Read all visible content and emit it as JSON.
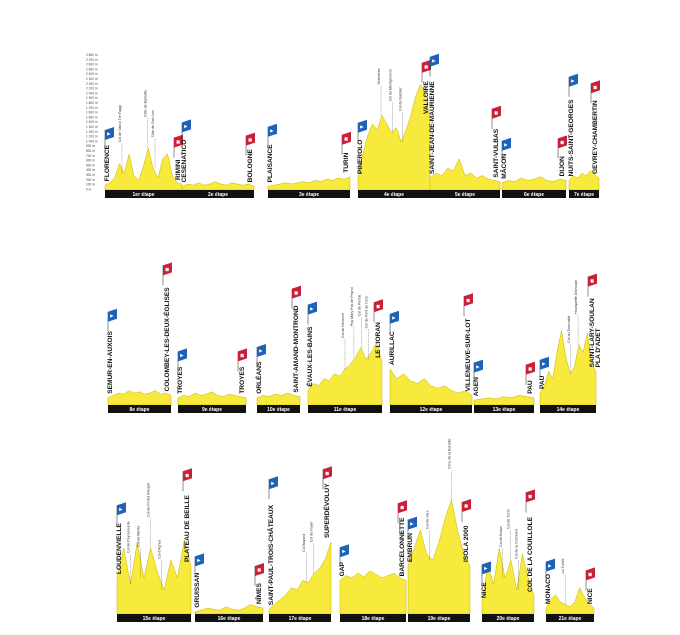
{
  "colors": {
    "profile": "#f7ea3c",
    "profile_line": "#c8b400",
    "bar": "#111111",
    "flag_start": "#1f63b8",
    "flag_finish": "#c9203a"
  },
  "yaxis_ticks": [
    "2 800 m",
    "2 700 m",
    "2 600 m",
    "2 500 m",
    "2 400 m",
    "2 300 m",
    "2 200 m",
    "2 100 m",
    "2 000 m",
    "1 900 m",
    "1 800 m",
    "1 700 m",
    "1 600 m",
    "1 500 m",
    "1 400 m",
    "1 300 m",
    "1 200 m",
    "1 100 m",
    "1 000 m",
    "900 m",
    "800 m",
    "700 m",
    "600 m",
    "500 m",
    "400 m",
    "300 m",
    "200 m",
    "100 m",
    "0 m"
  ],
  "stages": [
    {
      "label": "1er étape",
      "towns": [
        "FLORENCE",
        "RIMINI"
      ],
      "climbs": [
        "Col de Valico Tre Faggi",
        "Côte de Barbotto",
        "Côte de San Leo"
      ]
    },
    {
      "label": "2e étape",
      "towns": [
        "CESENATICO",
        "BOLOGNE"
      ],
      "climbs": []
    },
    {
      "label": "3e étape",
      "towns": [
        "PLAISANCE",
        "TURIN"
      ],
      "climbs": []
    },
    {
      "label": "4e étape",
      "towns": [
        "PINEROLO",
        "VALLOIRE"
      ],
      "climbs": [
        "Sestrières",
        "Col du Montgenèvre",
        "Col du Galibier"
      ]
    },
    {
      "label": "5e étape",
      "towns": [
        "SAINT-JEAN-DE-MAURIENNE",
        "SAINT-VULBAS"
      ],
      "climbs": []
    },
    {
      "label": "6e étape",
      "towns": [
        "MÂCON",
        "DIJON"
      ],
      "climbs": []
    },
    {
      "label": "7e étape",
      "towns": [
        "NUITS-SAINT-GEORGES",
        "GEVREY-CHAMBERTIN"
      ],
      "climbs": []
    },
    {
      "label": "8e étape",
      "towns": [
        "SEMUR-EN-AUXOIS",
        "COLOMBEY-LES-DEUX-ÉGLISES"
      ],
      "climbs": []
    },
    {
      "label": "9e étape",
      "towns": [
        "TROYES",
        "TROYES"
      ],
      "climbs": []
    },
    {
      "label": "10e étape",
      "towns": [
        "ORLÉANS",
        "SAINT-AMAND-MONTROND"
      ],
      "climbs": []
    },
    {
      "label": "11e étape",
      "towns": [
        "ÉVAUX-LES-BAINS",
        "LE LIORAN"
      ],
      "climbs": [
        "Col de Néronne",
        "Puy Mary Pas de Peyrol",
        "Col de Pertus",
        "Col de Font de Cère"
      ]
    },
    {
      "label": "12e étape",
      "towns": [
        "AURILLAC",
        "VILLENEUVE-SUR-LOT"
      ],
      "climbs": []
    },
    {
      "label": "13e étape",
      "towns": [
        "AGEN",
        "PAU"
      ],
      "climbs": []
    },
    {
      "label": "14e étape",
      "towns": [
        "PAU",
        "SAINT-LARY-SOULAN"
      ],
      "climbs": [
        "Col du Tourmalet",
        "Hourquette d'Ancizan"
      ]
    },
    {
      "label": "15e étape",
      "towns": [
        "LOUDENVIELLE",
        "PLATEAU DE BEILLE"
      ],
      "climbs": [
        "Col de Peyresourde",
        "Col de Menté",
        "Col de Portet d'Aspet",
        "Col d'Agnes"
      ]
    },
    {
      "label": "16e étape",
      "towns": [
        "GRUISSAN",
        "NÎMES"
      ],
      "climbs": []
    },
    {
      "label": "17e étape",
      "towns": [
        "SAINT-PAUL-TROIS-CHÂTEAUX",
        "SUPERDÉVOLUY"
      ],
      "climbs": [
        "Col Bayard",
        "Col du Noyer"
      ]
    },
    {
      "label": "18e étape",
      "towns": [
        "GAP",
        "BARCELONNETTE"
      ],
      "climbs": []
    },
    {
      "label": "19e étape",
      "towns": [
        "EMBRUN",
        "ISOLA 2000"
      ],
      "climbs": [
        "Col de Vars",
        "Cime de la Bonette"
      ]
    },
    {
      "label": "20e étape",
      "towns": [
        "NICE",
        "COL DE LA COUILLOLE"
      ],
      "climbs": [
        "Col de Braus",
        "Col de Turini",
        "Col de la Colmiane"
      ]
    },
    {
      "label": "21e étape",
      "towns": [
        "MONACO",
        "NICE"
      ],
      "climbs": [
        "La Turbie"
      ]
    }
  ],
  "extra_labels": {
    "st_lary_suffix": "PLA D'ADET"
  }
}
